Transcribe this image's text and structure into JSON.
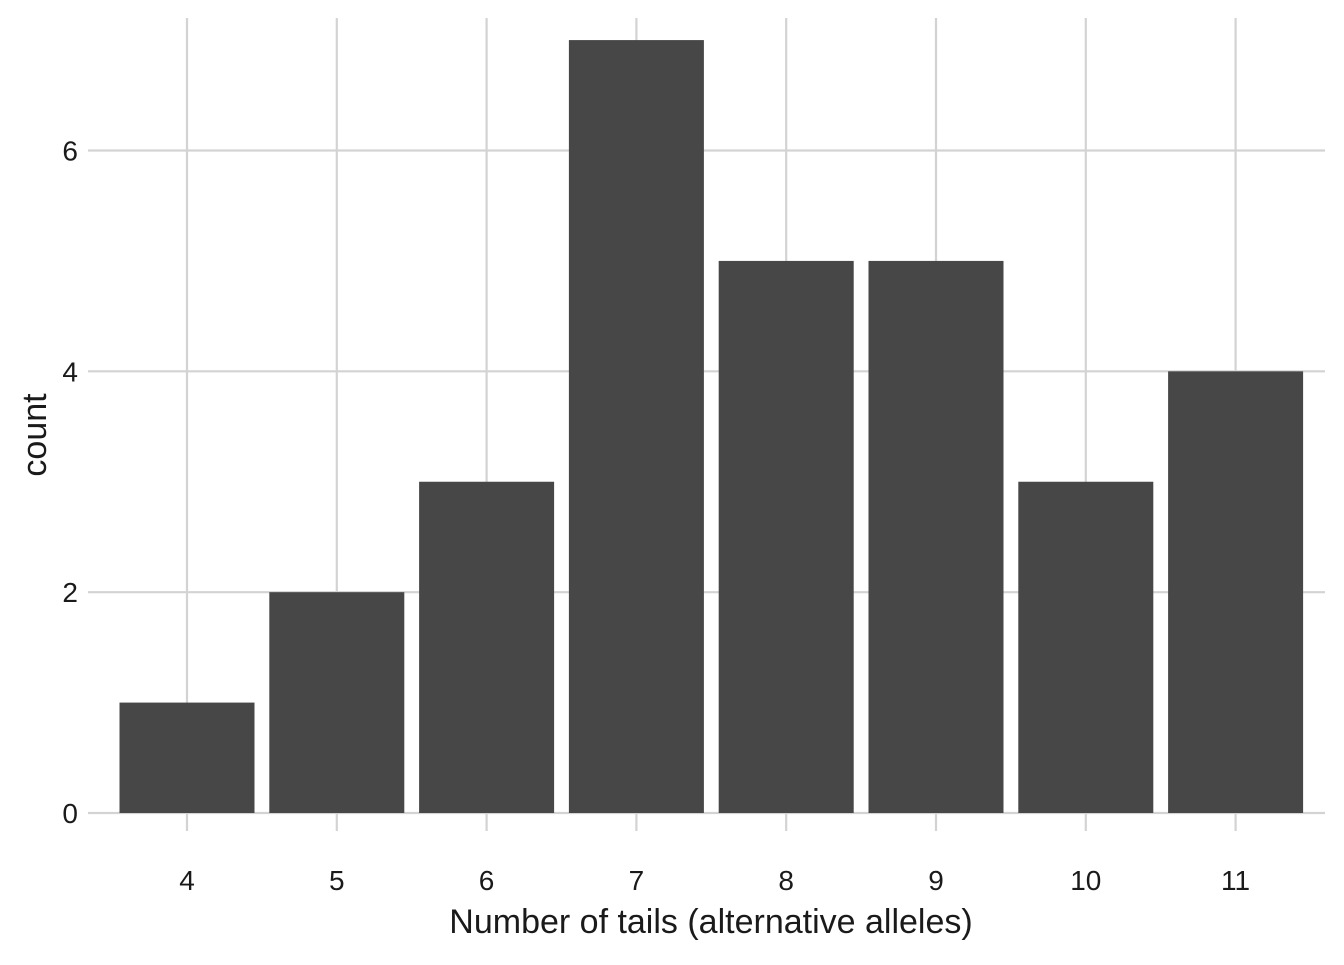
{
  "chart_data": {
    "type": "bar",
    "title": "",
    "xlabel": "Number of tails (alternative alleles)",
    "ylabel": "count",
    "categories": [
      "4",
      "5",
      "6",
      "7",
      "8",
      "9",
      "10",
      "11"
    ],
    "values": [
      1,
      2,
      3,
      7,
      5,
      5,
      3,
      4
    ],
    "ylim": [
      0,
      7.2
    ],
    "yticks": [
      0,
      2,
      4,
      6
    ],
    "grid": true,
    "legend": "none",
    "colors": {
      "bar": "#474747",
      "grid": "#d3d3d3",
      "text": "#1a1a1a",
      "background": "#ffffff"
    }
  }
}
